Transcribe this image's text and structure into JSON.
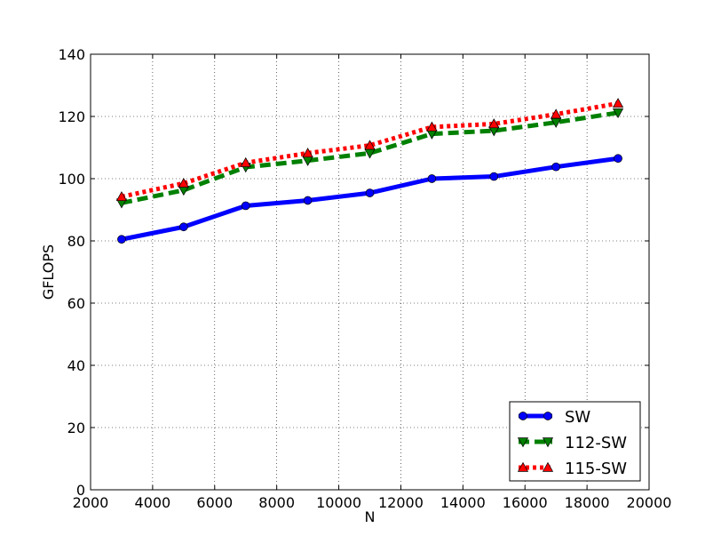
{
  "chart_data": {
    "type": "line",
    "title": "",
    "xlabel": "N",
    "ylabel": "GFLOPS",
    "xlim": [
      2000,
      20000
    ],
    "ylim": [
      0,
      140
    ],
    "xticks": [
      2000,
      4000,
      6000,
      8000,
      10000,
      12000,
      14000,
      16000,
      18000,
      20000
    ],
    "yticks": [
      0,
      20,
      40,
      60,
      80,
      100,
      120,
      140
    ],
    "grid": true,
    "legend_position": "lower-right",
    "x": [
      3000,
      5000,
      7000,
      9000,
      11000,
      13000,
      15000,
      17000,
      19000
    ],
    "series": [
      {
        "name": "SW",
        "color": "#0000ff",
        "marker": "circle",
        "line_style": "solid",
        "values": [
          80.5,
          84.5,
          91.3,
          93.0,
          95.4,
          100.0,
          100.7,
          103.8,
          106.5
        ]
      },
      {
        "name": "112-SW",
        "color": "#008000",
        "marker": "triangle-down",
        "line_style": "dashed",
        "values": [
          92.2,
          96.3,
          103.7,
          105.8,
          108.2,
          114.4,
          115.4,
          118.1,
          121.2
        ]
      },
      {
        "name": "115-SW",
        "color": "#ff0000",
        "marker": "triangle-up",
        "line_style": "dotted",
        "values": [
          94.2,
          98.5,
          105.1,
          108.2,
          110.7,
          116.6,
          117.6,
          120.7,
          124.2
        ]
      }
    ]
  }
}
